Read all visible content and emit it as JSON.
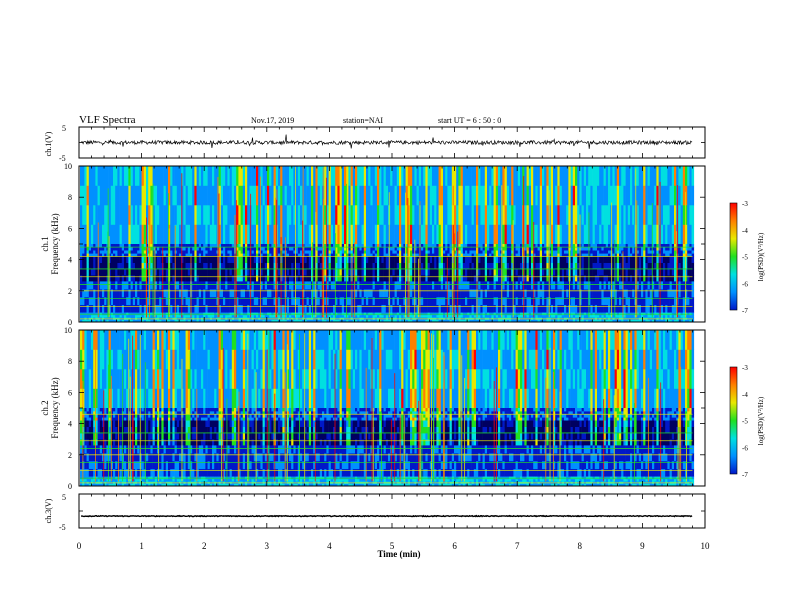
{
  "header": {
    "title": "VLF Spectra",
    "date": "Nov.17, 2019",
    "station": "station=NAI",
    "start": "start  UT  =   6  : 50 : 0"
  },
  "chart_data": [
    {
      "panel": "ch1-waveform",
      "type": "line",
      "ylabel": "ch.1(V)",
      "yticks": [
        "5",
        "-5"
      ],
      "ylim": [
        -5,
        5
      ],
      "xlim": [
        0,
        10
      ],
      "baseline": 0.0,
      "noise_amplitude": 0.6
    },
    {
      "panel": "ch1-spectrogram",
      "type": "heatmap",
      "ylabel_line1": "ch.1",
      "ylabel_line2": "Frequency  (kHz)",
      "yticks": [
        "0",
        "2",
        "4",
        "6",
        "8",
        "10"
      ],
      "ylim": [
        0,
        10
      ],
      "xlim": [
        0,
        9.8
      ],
      "colorbar": {
        "label": "log(PSD)(V²/Hz)",
        "ticks": [
          "-3",
          "-4",
          "-5",
          "-6",
          "-7"
        ],
        "range": [
          -7,
          -3
        ]
      },
      "horizontal_lines_khz": [
        0.2,
        0.5,
        1.0,
        1.5,
        2.0,
        2.4,
        2.9,
        3.4,
        4.2,
        4.8
      ]
    },
    {
      "panel": "ch2-spectrogram",
      "type": "heatmap",
      "ylabel_line1": "ch.2",
      "ylabel_line2": "Frequency  (kHz)",
      "yticks": [
        "0",
        "2",
        "4",
        "6",
        "8",
        "10"
      ],
      "ylim": [
        0,
        10
      ],
      "xlim": [
        0,
        9.8
      ],
      "colorbar": {
        "label": "log(PSD)(V²/Hz)",
        "ticks": [
          "-3",
          "-4",
          "-5",
          "-6",
          "-7"
        ],
        "range": [
          -7,
          -3
        ]
      },
      "horizontal_lines_khz": [
        0.2,
        0.5,
        1.0,
        1.5,
        2.0,
        2.4,
        2.9,
        3.4,
        4.6
      ]
    },
    {
      "panel": "ch3-waveform",
      "type": "line",
      "ylabel": "ch.3(V)",
      "yticks": [
        "5",
        "-5"
      ],
      "ylim": [
        -5,
        5
      ],
      "xlim": [
        0,
        9.8
      ],
      "baseline": -1.5
    }
  ],
  "x_axis": {
    "label": "Time  (min)",
    "ticks": [
      "0",
      "1",
      "2",
      "3",
      "4",
      "5",
      "6",
      "7",
      "8",
      "9",
      "10"
    ],
    "range": [
      0,
      10
    ]
  },
  "colors": {
    "colormap": [
      "#000000",
      "#000060",
      "#0018c8",
      "#0090ff",
      "#00e0e0",
      "#20e020",
      "#e8e800",
      "#ff8000",
      "#ff0000"
    ]
  }
}
